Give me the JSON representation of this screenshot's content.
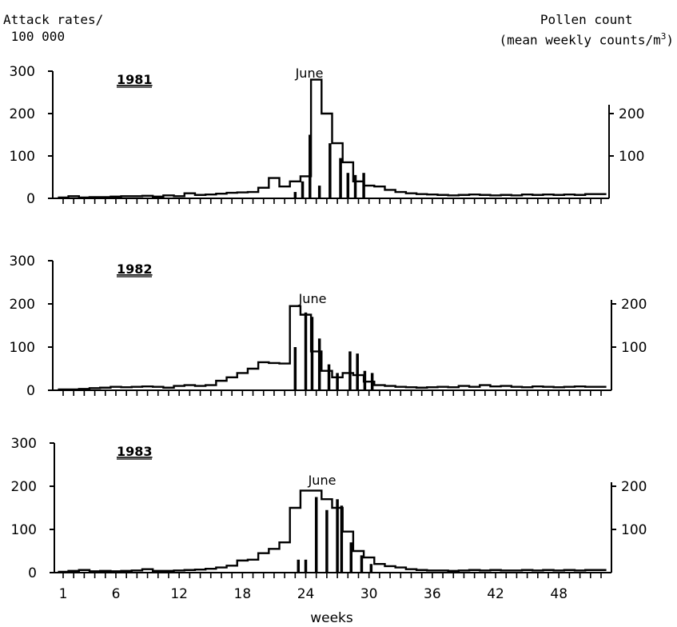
{
  "header": {
    "left_label_line1": "Attack rates/",
    "left_label_line2": "100 000",
    "right_label_line1": "Pollen count",
    "right_label_line2": "(mean weekly counts/m",
    "right_label_sup": "3",
    "right_label_end": ")"
  },
  "chart_data": [
    {
      "type": "line",
      "title": "1981",
      "annotation": "June",
      "xlabel": "",
      "ylabel": "Attack rates/ 100 000",
      "y2label": "Pollen count (mean weekly counts/m3)",
      "x_range": [
        1,
        52
      ],
      "ylim": [
        0,
        300
      ],
      "y2lim": [
        0,
        300
      ],
      "left_ticks": [
        "0",
        "100",
        "200",
        "300"
      ],
      "right_ticks": [
        "100",
        "200"
      ],
      "series": [
        {
          "kind": "step",
          "weeks": [
            1,
            2,
            3,
            4,
            5,
            6,
            7,
            8,
            9,
            10,
            11,
            12,
            13,
            14,
            15,
            16,
            17,
            18,
            19,
            20,
            21,
            22,
            23,
            24,
            25,
            26,
            27,
            28,
            29,
            30,
            31,
            32,
            33,
            34,
            35,
            36,
            37,
            38,
            39,
            40,
            41,
            42,
            43,
            44,
            45,
            46,
            47,
            48,
            49,
            50,
            51,
            52
          ],
          "values": [
            2,
            5,
            2,
            3,
            3,
            4,
            5,
            5,
            6,
            4,
            7,
            5,
            12,
            8,
            9,
            11,
            13,
            14,
            15,
            25,
            48,
            28,
            40,
            52,
            280,
            200,
            130,
            85,
            40,
            30,
            28,
            20,
            15,
            12,
            10,
            9,
            8,
            7,
            8,
            9,
            8,
            7,
            8,
            7,
            9,
            8,
            9,
            8,
            9,
            8,
            10,
            10
          ]
        },
        {
          "kind": "bars",
          "weeks": [
            23,
            23.7,
            24.4,
            25.3,
            26.3,
            27.3,
            28,
            28.7,
            29.5
          ],
          "values": [
            15,
            40,
            150,
            30,
            130,
            95,
            60,
            55,
            60
          ]
        }
      ]
    },
    {
      "type": "line",
      "title": "1982",
      "annotation": "June",
      "xlabel": "",
      "ylabel": "Attack rates/ 100 000",
      "y2label": "Pollen count (mean weekly counts/m3)",
      "x_range": [
        1,
        52
      ],
      "ylim": [
        0,
        300
      ],
      "y2lim": [
        0,
        300
      ],
      "left_ticks": [
        "0",
        "100",
        "200",
        "300"
      ],
      "right_ticks": [
        "100",
        "200"
      ],
      "series": [
        {
          "kind": "step",
          "weeks": [
            1,
            2,
            3,
            4,
            5,
            6,
            7,
            8,
            9,
            10,
            11,
            12,
            13,
            14,
            15,
            16,
            17,
            18,
            19,
            20,
            21,
            22,
            23,
            24,
            25,
            26,
            27,
            28,
            29,
            30,
            31,
            32,
            33,
            34,
            35,
            36,
            37,
            38,
            39,
            40,
            41,
            42,
            43,
            44,
            45,
            46,
            47,
            48,
            49,
            50,
            51,
            52
          ],
          "values": [
            2,
            2,
            3,
            5,
            6,
            8,
            7,
            8,
            9,
            8,
            6,
            10,
            12,
            10,
            12,
            22,
            30,
            40,
            50,
            65,
            63,
            62,
            195,
            175,
            90,
            45,
            30,
            40,
            35,
            20,
            12,
            10,
            8,
            7,
            6,
            7,
            8,
            7,
            10,
            8,
            12,
            9,
            10,
            8,
            7,
            9,
            8,
            7,
            8,
            9,
            8,
            8
          ]
        },
        {
          "kind": "bars",
          "weeks": [
            23,
            24,
            24.6,
            25.3,
            26.2,
            27,
            28.2,
            28.9,
            29.6,
            30.3
          ],
          "values": [
            100,
            180,
            170,
            120,
            60,
            40,
            90,
            85,
            45,
            40
          ]
        }
      ]
    },
    {
      "type": "line",
      "title": "1983",
      "annotation": "June",
      "xlabel": "weeks",
      "ylabel": "Attack rates/ 100 000",
      "y2label": "Pollen count (mean weekly counts/m3)",
      "x_range": [
        1,
        52
      ],
      "ylim": [
        0,
        300
      ],
      "y2lim": [
        0,
        300
      ],
      "left_ticks": [
        "0",
        "100",
        "200",
        "300"
      ],
      "right_ticks": [
        "100",
        "200"
      ],
      "x_ticks": [
        "1",
        "6",
        "12",
        "18",
        "24",
        "30",
        "36",
        "42",
        "48"
      ],
      "x_tick_values": [
        1,
        6,
        12,
        18,
        24,
        30,
        36,
        42,
        48
      ],
      "series": [
        {
          "kind": "step",
          "weeks": [
            1,
            2,
            3,
            4,
            5,
            6,
            7,
            8,
            9,
            10,
            11,
            12,
            13,
            14,
            15,
            16,
            17,
            18,
            19,
            20,
            21,
            22,
            23,
            24,
            25,
            26,
            27,
            28,
            29,
            30,
            31,
            32,
            33,
            34,
            35,
            36,
            37,
            38,
            39,
            40,
            41,
            42,
            43,
            44,
            45,
            46,
            47,
            48,
            49,
            50,
            51,
            52
          ],
          "values": [
            2,
            4,
            6,
            3,
            4,
            3,
            4,
            5,
            8,
            4,
            4,
            5,
            6,
            7,
            9,
            12,
            16,
            28,
            30,
            45,
            55,
            70,
            150,
            190,
            190,
            170,
            150,
            95,
            50,
            35,
            20,
            15,
            12,
            8,
            6,
            5,
            5,
            4,
            5,
            6,
            5,
            6,
            5,
            5,
            6,
            5,
            6,
            5,
            6,
            5,
            6,
            6
          ]
        },
        {
          "kind": "bars",
          "weeks": [
            23.3,
            24,
            25,
            26,
            27,
            27.4,
            28.3,
            29.3,
            30.2
          ],
          "values": [
            30,
            30,
            175,
            145,
            170,
            155,
            70,
            40,
            20
          ]
        }
      ]
    }
  ]
}
